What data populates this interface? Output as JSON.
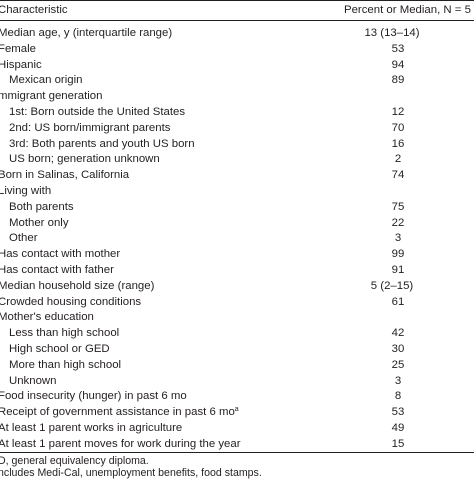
{
  "table": {
    "header": {
      "characteristic": "Characteristic",
      "value": "Percent or Median, N = 5"
    },
    "rows": [
      {
        "label": "Median age, y (interquartile range)",
        "value": "13 (13–14)",
        "indent": false
      },
      {
        "label": "Female",
        "value": "53",
        "indent": false
      },
      {
        "label": "Hispanic",
        "value": "94",
        "indent": false
      },
      {
        "label": "Mexican origin",
        "value": "89",
        "indent": true
      },
      {
        "label": "mmigrant generation",
        "value": "",
        "indent": false
      },
      {
        "label": "1st: Born outside the United States",
        "value": "12",
        "indent": true
      },
      {
        "label": "2nd: US born/immigrant parents",
        "value": "70",
        "indent": true
      },
      {
        "label": "3rd: Both parents and youth US born",
        "value": "16",
        "indent": true
      },
      {
        "label": "US born; generation unknown",
        "value": "2",
        "indent": true
      },
      {
        "label": "Born in Salinas, California",
        "value": "74",
        "indent": false
      },
      {
        "label": "Living with",
        "value": "",
        "indent": false
      },
      {
        "label": "Both parents",
        "value": "75",
        "indent": true
      },
      {
        "label": "Mother only",
        "value": "22",
        "indent": true
      },
      {
        "label": "Other",
        "value": "3",
        "indent": true
      },
      {
        "label": "Has contact with mother",
        "value": "99",
        "indent": false
      },
      {
        "label": "Has contact with father",
        "value": "91",
        "indent": false
      },
      {
        "label": "Median household size (range)",
        "value": "5 (2–15)",
        "indent": false
      },
      {
        "label": "Crowded housing conditions",
        "value": "61",
        "indent": false
      },
      {
        "label": "Mother's education",
        "value": "",
        "indent": false
      },
      {
        "label": "Less than high school",
        "value": "42",
        "indent": true
      },
      {
        "label": "High school or GED",
        "value": "30",
        "indent": true
      },
      {
        "label": "More than high school",
        "value": "25",
        "indent": true
      },
      {
        "label": "Unknown",
        "value": "3",
        "indent": true
      },
      {
        "label": "Food insecurity (hunger) in past 6 mo",
        "value": "8",
        "indent": false
      },
      {
        "label": "Receipt of government assistance in past 6 mo",
        "sup": "a",
        "value": "53",
        "indent": false
      },
      {
        "label": "At least 1 parent works in agriculture",
        "value": "49",
        "indent": false
      },
      {
        "label": "At least 1 parent moves for work during the year",
        "value": "15",
        "indent": false
      }
    ]
  },
  "footnotes": {
    "line1": "D, general equivalency diploma.",
    "line2": "ncludes Medi-Cal, unemployment benefits, food stamps."
  }
}
